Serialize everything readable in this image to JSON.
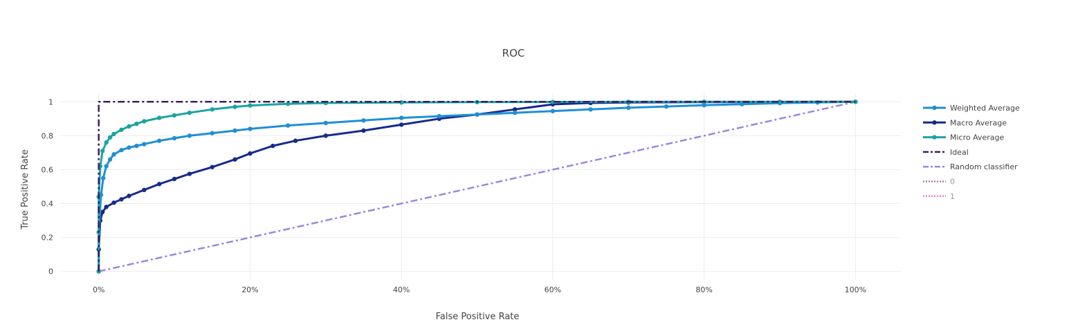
{
  "chart_data": {
    "type": "line",
    "title": "ROC",
    "xlabel": "False Positive Rate",
    "ylabel": "True Positive Rate",
    "xlim": [
      -0.05,
      1.06
    ],
    "ylim": [
      -0.05,
      1.05
    ],
    "x_ticks": [
      0,
      0.2,
      0.4,
      0.6,
      0.8,
      1.0
    ],
    "x_tick_labels": [
      "0%",
      "20%",
      "40%",
      "60%",
      "80%",
      "100%"
    ],
    "y_ticks": [
      0,
      0.2,
      0.4,
      0.6,
      0.8,
      1.0
    ],
    "y_tick_labels": [
      "0",
      "0.2",
      "0.4",
      "0.6",
      "0.8",
      "1"
    ],
    "grid": true,
    "legend_position": "right",
    "series": [
      {
        "name": "Weighted Average",
        "color": "#1f8fd6",
        "dash": "solid",
        "markers": true,
        "x": [
          0,
          0,
          0.003,
          0.006,
          0.01,
          0.015,
          0.02,
          0.03,
          0.04,
          0.05,
          0.06,
          0.08,
          0.1,
          0.12,
          0.15,
          0.18,
          0.2,
          0.25,
          0.3,
          0.35,
          0.4,
          0.45,
          0.5,
          0.55,
          0.6,
          0.65,
          0.7,
          0.75,
          0.8,
          0.85,
          0.9,
          0.95,
          1.0
        ],
        "y": [
          0,
          0.23,
          0.45,
          0.55,
          0.62,
          0.66,
          0.69,
          0.715,
          0.73,
          0.74,
          0.75,
          0.77,
          0.785,
          0.8,
          0.815,
          0.83,
          0.84,
          0.86,
          0.875,
          0.89,
          0.905,
          0.915,
          0.925,
          0.935,
          0.945,
          0.955,
          0.965,
          0.972,
          0.98,
          0.986,
          0.992,
          0.996,
          1.0
        ]
      },
      {
        "name": "Macro Average",
        "color": "#162a8c",
        "dash": "solid",
        "markers": true,
        "x": [
          0,
          0,
          0.002,
          0.005,
          0.01,
          0.02,
          0.03,
          0.04,
          0.06,
          0.08,
          0.1,
          0.12,
          0.15,
          0.18,
          0.2,
          0.23,
          0.26,
          0.3,
          0.35,
          0.4,
          0.45,
          0.5,
          0.55,
          0.6,
          0.65,
          0.7,
          0.8,
          0.9,
          1.0
        ],
        "y": [
          0,
          0.13,
          0.3,
          0.35,
          0.38,
          0.405,
          0.425,
          0.445,
          0.48,
          0.515,
          0.545,
          0.575,
          0.615,
          0.66,
          0.695,
          0.74,
          0.77,
          0.8,
          0.83,
          0.865,
          0.9,
          0.925,
          0.955,
          0.985,
          0.993,
          0.996,
          0.998,
          0.999,
          1.0
        ]
      },
      {
        "name": "Micro Average",
        "color": "#1aa3a3",
        "dash": "solid",
        "markers": true,
        "x": [
          0,
          0,
          0.002,
          0.005,
          0.01,
          0.015,
          0.02,
          0.03,
          0.04,
          0.05,
          0.06,
          0.08,
          0.1,
          0.12,
          0.15,
          0.18,
          0.2,
          0.25,
          0.3,
          0.4,
          0.5,
          0.6,
          0.7,
          0.8,
          0.9,
          1.0
        ],
        "y": [
          0,
          0.44,
          0.62,
          0.71,
          0.76,
          0.79,
          0.81,
          0.835,
          0.855,
          0.87,
          0.885,
          0.905,
          0.92,
          0.935,
          0.955,
          0.97,
          0.978,
          0.988,
          0.993,
          0.996,
          0.998,
          0.999,
          1.0,
          1.0,
          1.0,
          1.0
        ]
      },
      {
        "name": "Ideal",
        "color": "#3b1f5e",
        "dash": "dashdot",
        "markers": false,
        "x": [
          0,
          0,
          1
        ],
        "y": [
          0,
          1,
          1
        ]
      },
      {
        "name": "Random classifier",
        "color": "#9d85dc",
        "dash": "dashdot",
        "markers": false,
        "x": [
          0,
          1
        ],
        "y": [
          0,
          1
        ]
      },
      {
        "name": "0",
        "color": "#b07aa0",
        "dash": "dot",
        "markers": false,
        "muted": true,
        "x": [],
        "y": []
      },
      {
        "name": "1",
        "color": "#f07ad6",
        "dash": "dot",
        "markers": false,
        "muted": true,
        "x": [],
        "y": []
      }
    ]
  }
}
